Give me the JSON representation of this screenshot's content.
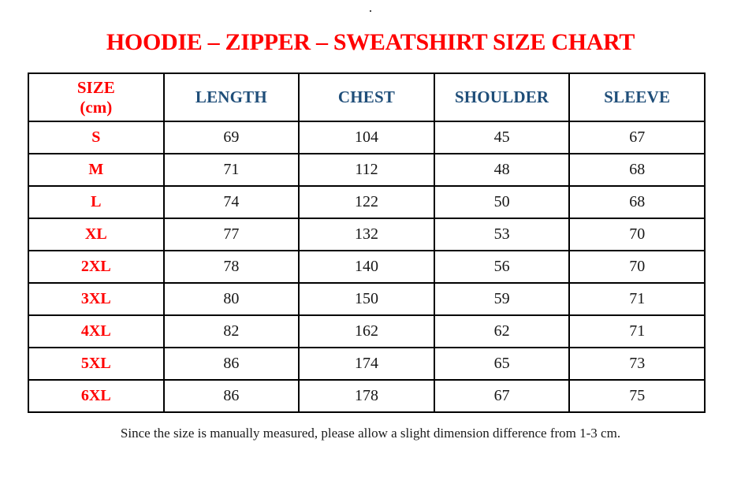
{
  "page": {
    "top_dot": "."
  },
  "title": {
    "text": "HOODIE – ZIPPER – SWEATSHIRT SIZE CHART"
  },
  "table": {
    "header": {
      "size_line1": "SIZE",
      "size_line2": "(cm)",
      "columns": [
        "LENGTH",
        "CHEST",
        "SHOULDER",
        "SLEEVE"
      ]
    },
    "rows": [
      {
        "size": "S",
        "length": "69",
        "chest": "104",
        "shoulder": "45",
        "sleeve": "67"
      },
      {
        "size": "M",
        "length": "71",
        "chest": "112",
        "shoulder": "48",
        "sleeve": "68"
      },
      {
        "size": "L",
        "length": "74",
        "chest": "122",
        "shoulder": "50",
        "sleeve": "68"
      },
      {
        "size": "XL",
        "length": "77",
        "chest": "132",
        "shoulder": "53",
        "sleeve": "70"
      },
      {
        "size": "2XL",
        "length": "78",
        "chest": "140",
        "shoulder": "56",
        "sleeve": "70"
      },
      {
        "size": "3XL",
        "length": "80",
        "chest": "150",
        "shoulder": "59",
        "sleeve": "71"
      },
      {
        "size": "4XL",
        "length": "82",
        "chest": "162",
        "shoulder": "62",
        "sleeve": "71"
      },
      {
        "size": "5XL",
        "length": "86",
        "chest": "174",
        "shoulder": "65",
        "sleeve": "73"
      },
      {
        "size": "6XL",
        "length": "86",
        "chest": "178",
        "shoulder": "67",
        "sleeve": "75"
      }
    ]
  },
  "footer": {
    "note": "Since the size is manually measured, please allow a slight dimension difference from 1-3 cm."
  },
  "colors": {
    "accent_red": "#ff0000",
    "header_blue": "#1f4e79",
    "text_black": "#161616",
    "border": "#000000"
  }
}
